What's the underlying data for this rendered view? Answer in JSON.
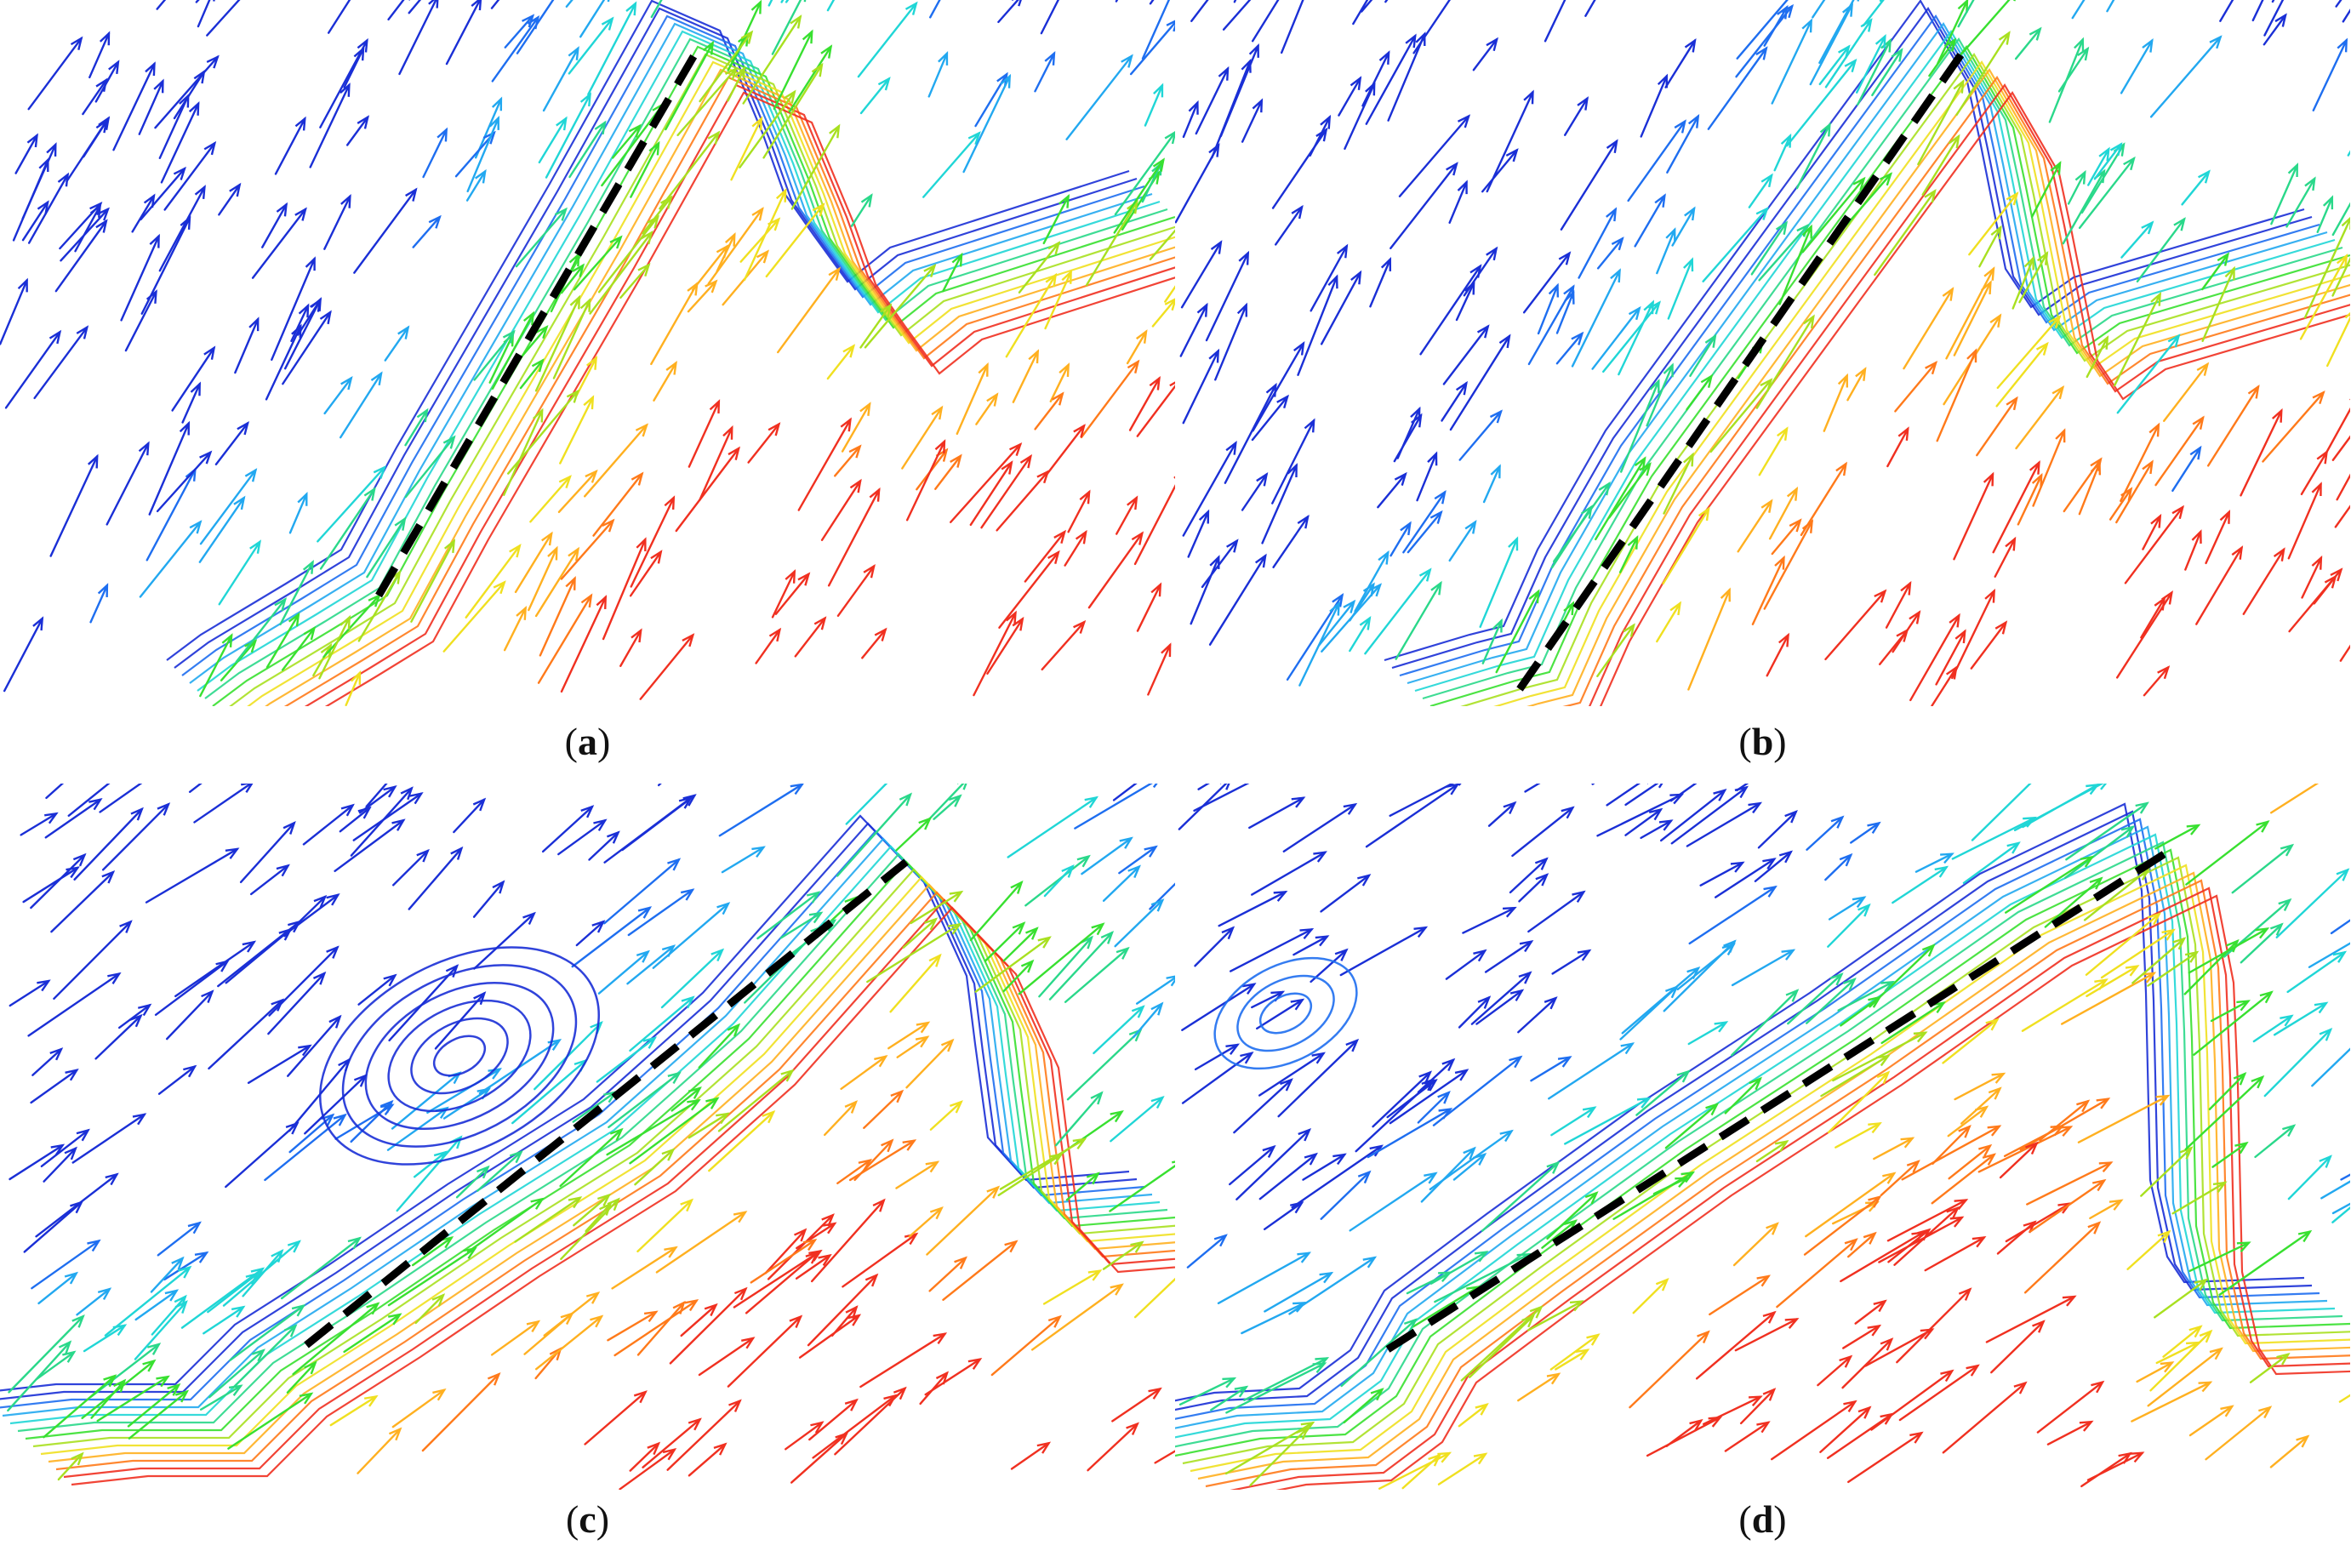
{
  "panels": [
    {
      "id": "a",
      "label": "a"
    },
    {
      "id": "b",
      "label": "b"
    },
    {
      "id": "c",
      "label": "c"
    },
    {
      "id": "d",
      "label": "d"
    }
  ],
  "colors": {
    "palette": [
      "#1a2fd6",
      "#1e6ef0",
      "#22a8f0",
      "#20d6d6",
      "#2ad88a",
      "#38e030",
      "#a8e020",
      "#f0e020",
      "#ffb020",
      "#ff7a1a",
      "#f03020"
    ],
    "separation_line": "#000000"
  }
}
